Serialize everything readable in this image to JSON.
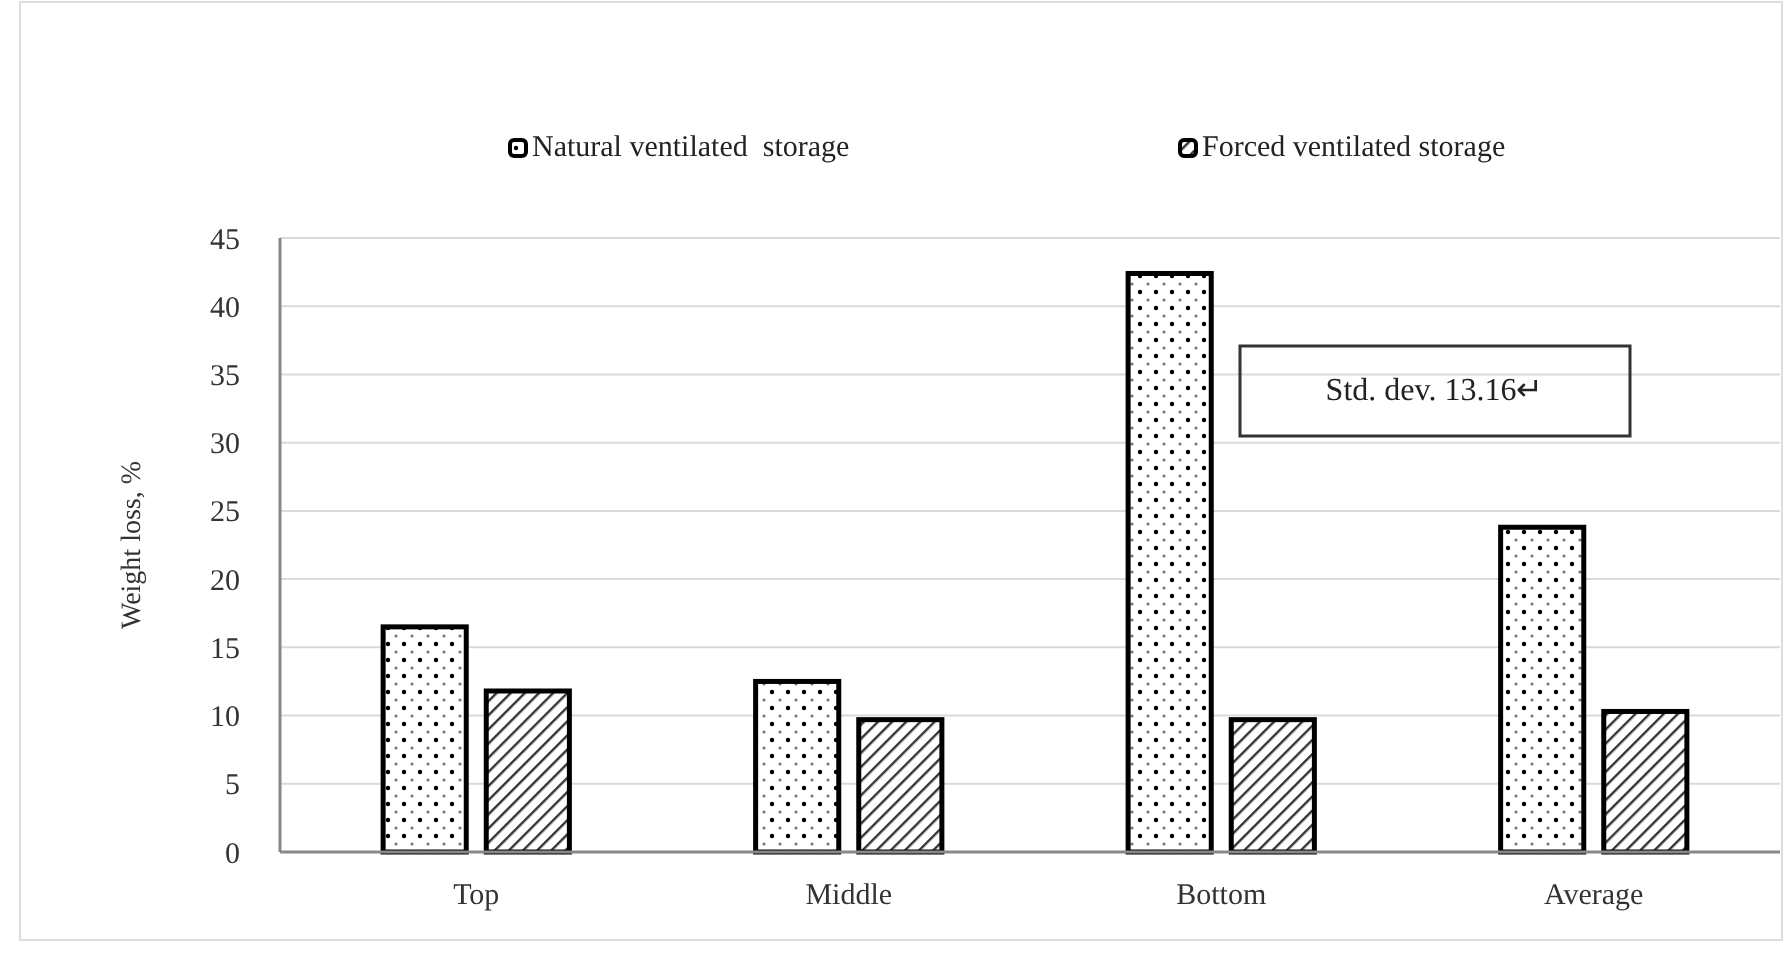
{
  "chart_data": {
    "type": "bar",
    "ylabel": "Weight loss, %",
    "categories": [
      "Top",
      "Middle",
      "Bottom",
      "Average"
    ],
    "series": [
      {
        "name": "Natural ventilated  storage",
        "color": "#000000",
        "values": [
          16.5,
          12.5,
          42.4,
          23.8
        ]
      },
      {
        "name": "Forced ventilated storage",
        "color": "#000000",
        "values": [
          11.8,
          9.7,
          9.7,
          10.3
        ]
      }
    ],
    "ylim": [
      0,
      45
    ],
    "yticks": [
      0,
      5,
      10,
      15,
      20,
      25,
      30,
      35,
      40,
      45
    ],
    "grid": "y",
    "legend": "top",
    "annotations": [
      "Std. dev. 13.16↵"
    ]
  }
}
